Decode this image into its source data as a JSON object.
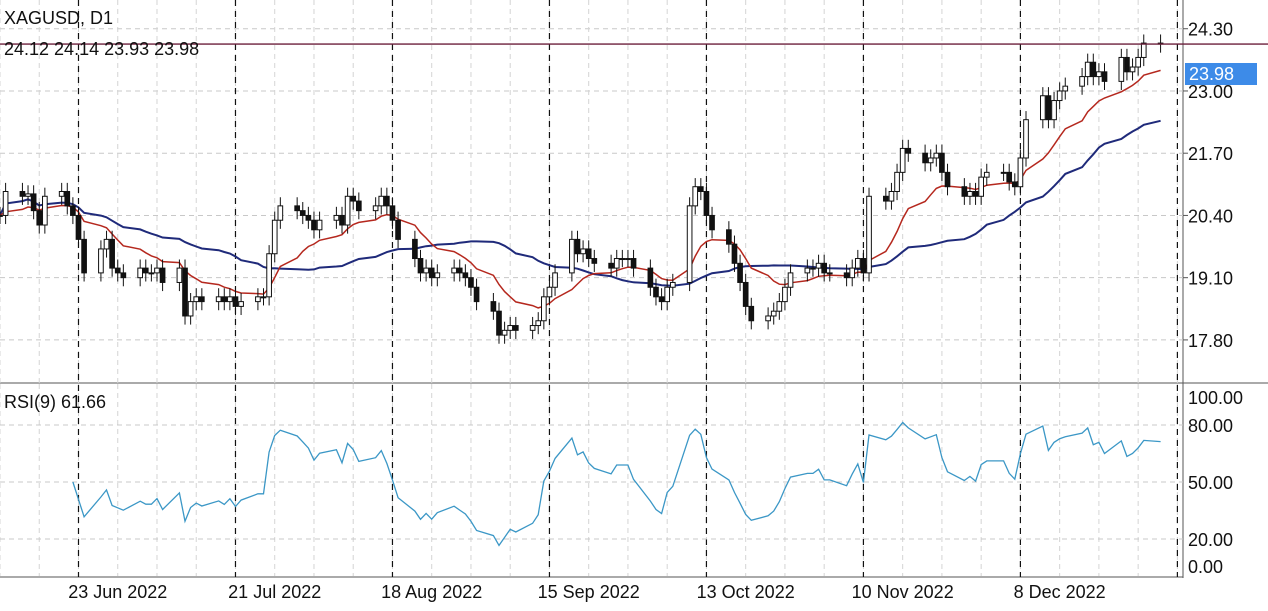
{
  "chart_data": [
    {
      "type": "candlestick",
      "symbol_label": "XAGUSD, D1",
      "ohlc_label": "24.12 24.14 23.93 23.98",
      "current_price_label": "23.98",
      "y_ticks": [
        "24.30",
        "23.00",
        "21.70",
        "20.40",
        "19.10",
        "17.80"
      ],
      "ylim": [
        16.9,
        24.9
      ],
      "x_dates": [
        "23 Jun 2022",
        "21 Jul 2022",
        "18 Aug 2022",
        "15 Sep 2022",
        "13 Oct 2022",
        "10 Nov 2022",
        "8 Dec 2022"
      ],
      "x_range": [
        "2022-06-02",
        "2022-12-30"
      ],
      "horizontal_line": 23.98,
      "closes": [
        [
          "2022-06-02",
          20.4
        ],
        [
          "2022-06-03",
          20.9
        ],
        [
          "2022-06-06",
          20.8
        ],
        [
          "2022-06-07",
          20.85
        ],
        [
          "2022-06-08",
          20.5
        ],
        [
          "2022-06-09",
          20.2
        ],
        [
          "2022-06-10",
          20.8
        ],
        [
          "2022-06-13",
          20.9
        ],
        [
          "2022-06-14",
          20.6
        ],
        [
          "2022-06-15",
          20.4
        ],
        [
          "2022-06-16",
          19.9
        ],
        [
          "2022-06-17",
          19.2
        ],
        [
          "2022-06-20",
          19.7
        ],
        [
          "2022-06-21",
          19.9
        ],
        [
          "2022-06-22",
          19.3
        ],
        [
          "2022-06-23",
          19.2
        ],
        [
          "2022-06-24",
          19.1
        ],
        [
          "2022-06-27",
          19.3
        ],
        [
          "2022-06-28",
          19.2
        ],
        [
          "2022-06-29",
          19.2
        ],
        [
          "2022-06-30",
          19.3
        ],
        [
          "2022-07-01",
          19.0
        ],
        [
          "2022-07-04",
          19.3
        ],
        [
          "2022-07-05",
          18.3
        ],
        [
          "2022-07-06",
          18.6
        ],
        [
          "2022-07-07",
          18.7
        ],
        [
          "2022-07-08",
          18.6
        ],
        [
          "2022-07-11",
          18.7
        ],
        [
          "2022-07-12",
          18.6
        ],
        [
          "2022-07-13",
          18.7
        ],
        [
          "2022-07-14",
          18.5
        ],
        [
          "2022-07-15",
          18.6
        ],
        [
          "2022-07-18",
          18.7
        ],
        [
          "2022-07-19",
          18.7
        ],
        [
          "2022-07-20",
          19.6
        ],
        [
          "2022-07-21",
          20.3
        ],
        [
          "2022-07-22",
          20.6
        ],
        [
          "2022-07-25",
          20.5
        ],
        [
          "2022-07-26",
          20.4
        ],
        [
          "2022-07-27",
          20.3
        ],
        [
          "2022-07-28",
          20.1
        ],
        [
          "2022-07-29",
          20.3
        ],
        [
          "2022-08-01",
          20.4
        ],
        [
          "2022-08-02",
          20.2
        ],
        [
          "2022-08-03",
          20.8
        ],
        [
          "2022-08-04",
          20.7
        ],
        [
          "2022-08-05",
          20.5
        ],
        [
          "2022-08-08",
          20.6
        ],
        [
          "2022-08-09",
          20.8
        ],
        [
          "2022-08-10",
          20.6
        ],
        [
          "2022-08-11",
          20.3
        ],
        [
          "2022-08-12",
          19.9
        ],
        [
          "2022-08-15",
          19.5
        ],
        [
          "2022-08-16",
          19.2
        ],
        [
          "2022-08-17",
          19.3
        ],
        [
          "2022-08-18",
          19.1
        ],
        [
          "2022-08-19",
          19.2
        ],
        [
          "2022-08-22",
          19.3
        ],
        [
          "2022-08-23",
          19.2
        ],
        [
          "2022-08-24",
          19.1
        ],
        [
          "2022-08-25",
          18.9
        ],
        [
          "2022-08-26",
          18.6
        ],
        [
          "2022-08-29",
          18.4
        ],
        [
          "2022-08-30",
          17.9
        ],
        [
          "2022-08-31",
          18.0
        ],
        [
          "2022-09-01",
          18.1
        ],
        [
          "2022-09-02",
          18.0
        ],
        [
          "2022-09-05",
          18.1
        ],
        [
          "2022-09-06",
          18.2
        ],
        [
          "2022-09-07",
          18.7
        ],
        [
          "2022-09-08",
          18.9
        ],
        [
          "2022-09-09",
          19.2
        ],
        [
          "2022-09-12",
          19.9
        ],
        [
          "2022-09-13",
          19.6
        ],
        [
          "2022-09-14",
          19.7
        ],
        [
          "2022-09-15",
          19.5
        ],
        [
          "2022-09-16",
          19.4
        ],
        [
          "2022-09-19",
          19.3
        ],
        [
          "2022-09-20",
          19.5
        ],
        [
          "2022-09-21",
          19.5
        ],
        [
          "2022-09-22",
          19.5
        ],
        [
          "2022-09-23",
          19.3
        ],
        [
          "2022-09-26",
          18.9
        ],
        [
          "2022-09-27",
          18.7
        ],
        [
          "2022-09-28",
          18.6
        ],
        [
          "2022-09-29",
          18.9
        ],
        [
          "2022-09-30",
          19.0
        ],
        [
          "2022-10-03",
          20.6
        ],
        [
          "2022-10-04",
          21.0
        ],
        [
          "2022-10-05",
          20.9
        ],
        [
          "2022-10-06",
          20.4
        ],
        [
          "2022-10-07",
          20.1
        ],
        [
          "2022-10-10",
          19.8
        ],
        [
          "2022-10-11",
          19.4
        ],
        [
          "2022-10-12",
          19.0
        ],
        [
          "2022-10-13",
          18.5
        ],
        [
          "2022-10-14",
          18.2
        ],
        [
          "2022-10-17",
          18.3
        ],
        [
          "2022-10-18",
          18.4
        ],
        [
          "2022-10-19",
          18.6
        ],
        [
          "2022-10-20",
          18.9
        ],
        [
          "2022-10-21",
          19.2
        ],
        [
          "2022-10-24",
          19.3
        ],
        [
          "2022-10-25",
          19.3
        ],
        [
          "2022-10-26",
          19.4
        ],
        [
          "2022-10-27",
          19.2
        ],
        [
          "2022-10-28",
          19.2
        ],
        [
          "2022-10-31",
          19.1
        ],
        [
          "2022-11-01",
          19.3
        ],
        [
          "2022-11-02",
          19.5
        ],
        [
          "2022-11-03",
          19.2
        ],
        [
          "2022-11-04",
          20.8
        ],
        [
          "2022-11-07",
          20.7
        ],
        [
          "2022-11-08",
          20.9
        ],
        [
          "2022-11-09",
          21.3
        ],
        [
          "2022-11-10",
          21.8
        ],
        [
          "2022-11-11",
          21.7
        ],
        [
          "2022-11-14",
          21.5
        ],
        [
          "2022-11-15",
          21.6
        ],
        [
          "2022-11-16",
          21.7
        ],
        [
          "2022-11-17",
          21.3
        ],
        [
          "2022-11-18",
          21.0
        ],
        [
          "2022-11-21",
          20.8
        ],
        [
          "2022-11-22",
          20.9
        ],
        [
          "2022-11-23",
          20.8
        ],
        [
          "2022-11-24",
          21.2
        ],
        [
          "2022-11-25",
          21.3
        ],
        [
          "2022-11-28",
          21.3
        ],
        [
          "2022-11-29",
          21.1
        ],
        [
          "2022-11-30",
          21.0
        ],
        [
          "2022-12-01",
          21.6
        ],
        [
          "2022-12-02",
          22.4
        ],
        [
          "2022-12-05",
          22.9
        ],
        [
          "2022-12-06",
          22.4
        ],
        [
          "2022-12-07",
          22.8
        ],
        [
          "2022-12-08",
          23.0
        ],
        [
          "2022-12-09",
          23.1
        ],
        [
          "2022-12-12",
          23.3
        ],
        [
          "2022-12-13",
          23.6
        ],
        [
          "2022-12-14",
          23.3
        ],
        [
          "2022-12-15",
          23.4
        ],
        [
          "2022-12-16",
          23.2
        ],
        [
          "2022-12-19",
          23.7
        ],
        [
          "2022-12-20",
          23.4
        ],
        [
          "2022-12-21",
          23.5
        ],
        [
          "2022-12-22",
          23.7
        ],
        [
          "2022-12-23",
          24.0
        ],
        [
          "2022-12-26",
          23.98
        ]
      ]
    },
    {
      "type": "line",
      "indicator_label": "RSI(9) 61.66",
      "y_ticks": [
        "100.00",
        "80.00",
        "50.00",
        "20.00",
        "0.00"
      ],
      "ylim": [
        0,
        100
      ],
      "line_color": "#3b97c6"
    }
  ]
}
